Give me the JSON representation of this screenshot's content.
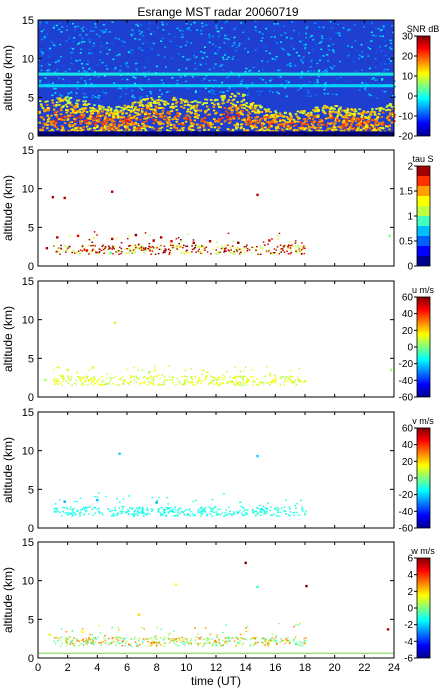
{
  "chart_data": [
    {
      "type": "heatmap",
      "title": "Esrange MST radar 20060719",
      "ylabel": "altitude (km)",
      "ylim": [
        0,
        15
      ],
      "xlim": [
        0,
        24
      ],
      "yticks": [
        0,
        5,
        10,
        15
      ],
      "colorbar": {
        "label": "SNR dB",
        "range": [
          -20,
          30
        ],
        "ticks": [
          -20,
          -10,
          0,
          10,
          20,
          30
        ]
      },
      "background": "#1f3fd0",
      "features": [
        {
          "desc": "strong echo layer",
          "x": [
            0,
            24
          ],
          "y": [
            1,
            4.5
          ],
          "value": 12
        },
        {
          "desc": "weak layer",
          "x": [
            0,
            24
          ],
          "y": [
            7.8,
            8.2
          ],
          "value": 0
        },
        {
          "desc": "weak layer",
          "x": [
            0,
            24
          ],
          "y": [
            6.3,
            6.7
          ],
          "value": -2
        }
      ]
    },
    {
      "type": "scatter",
      "ylabel": "altitude (km)",
      "ylim": [
        0,
        15
      ],
      "xlim": [
        0,
        24
      ],
      "yticks": [
        0,
        5,
        10,
        15
      ],
      "colorbar": {
        "label": "tau S",
        "range": [
          0,
          2
        ],
        "ticks": [
          0,
          0.5,
          1,
          1.5,
          2
        ]
      },
      "points": [
        {
          "x": 1.3,
          "y": 3.7,
          "v": 1.9
        },
        {
          "x": 2.7,
          "y": 3.9,
          "v": 1.8
        },
        {
          "x": 5.0,
          "y": 3.5,
          "v": 1.9
        },
        {
          "x": 6.6,
          "y": 4.0,
          "v": 2.0
        },
        {
          "x": 7.8,
          "y": 3.3,
          "v": 1.9
        },
        {
          "x": 8.3,
          "y": 3.7,
          "v": 1.9
        },
        {
          "x": 9.0,
          "y": 3.2,
          "v": 1.8
        },
        {
          "x": 10.5,
          "y": 3.0,
          "v": 1.9
        },
        {
          "x": 11.6,
          "y": 3.2,
          "v": 1.9
        },
        {
          "x": 13.5,
          "y": 3.0,
          "v": 2.0
        },
        {
          "x": 15.6,
          "y": 3.3,
          "v": 1.8
        },
        {
          "x": 23.7,
          "y": 3.9,
          "v": 1.0
        },
        {
          "x": 1.0,
          "y": 8.9,
          "v": 1.9
        },
        {
          "x": 1.8,
          "y": 8.8,
          "v": 1.9
        },
        {
          "x": 5.0,
          "y": 9.6,
          "v": 1.9
        },
        {
          "x": 14.8,
          "y": 9.2,
          "v": 1.9
        },
        {
          "x": 0.6,
          "y": 2.3,
          "v": 1.9
        },
        {
          "x": 9.6,
          "y": 2.5,
          "v": 1.4
        },
        {
          "x": 3.3,
          "y": 2.0,
          "v": 1.8
        },
        {
          "x": 4.9,
          "y": 1.7,
          "v": 0.9
        }
      ]
    },
    {
      "type": "scatter",
      "ylabel": "altitude (km)",
      "ylim": [
        0,
        15
      ],
      "xlim": [
        0,
        24
      ],
      "yticks": [
        0,
        5,
        10,
        15
      ],
      "colorbar": {
        "label": "u m/s",
        "range": [
          -60,
          60
        ],
        "ticks": [
          -60,
          -40,
          -20,
          0,
          20,
          40,
          60
        ]
      },
      "points": [
        {
          "x": 0.5,
          "y": 2.2,
          "v": 5
        },
        {
          "x": 2.0,
          "y": 3.5,
          "v": 10
        },
        {
          "x": 3.7,
          "y": 3.8,
          "v": 12
        },
        {
          "x": 5.2,
          "y": 9.6,
          "v": 8
        },
        {
          "x": 7.5,
          "y": 3.2,
          "v": 6
        },
        {
          "x": 23.8,
          "y": 3.5,
          "v": 5
        }
      ]
    },
    {
      "type": "scatter",
      "ylabel": "altitude (km)",
      "ylim": [
        0,
        15
      ],
      "xlim": [
        0,
        24
      ],
      "yticks": [
        0,
        5,
        10,
        15
      ],
      "colorbar": {
        "label": "v m/s",
        "range": [
          -60,
          60
        ],
        "ticks": [
          -60,
          -40,
          -20,
          0,
          20,
          40,
          60
        ]
      },
      "points": [
        {
          "x": 1.8,
          "y": 3.4,
          "v": -25
        },
        {
          "x": 4.0,
          "y": 3.6,
          "v": -22
        },
        {
          "x": 5.5,
          "y": 9.6,
          "v": -20
        },
        {
          "x": 8.0,
          "y": 3.3,
          "v": -25
        },
        {
          "x": 14.8,
          "y": 9.3,
          "v": -20
        }
      ]
    },
    {
      "type": "scatter",
      "xlabel": "time (UT)",
      "ylabel": "altitude (km)",
      "ylim": [
        0,
        15
      ],
      "xlim": [
        0,
        24
      ],
      "yticks": [
        0,
        5,
        10,
        15
      ],
      "xticks": [
        0,
        2,
        4,
        6,
        8,
        10,
        12,
        14,
        16,
        18,
        20,
        22,
        24
      ],
      "colorbar": {
        "label": "w m/s",
        "range": [
          -6,
          6
        ],
        "ticks": [
          -6,
          -4,
          -2,
          0,
          2,
          4,
          6
        ]
      },
      "points": [
        {
          "x": 14.0,
          "y": 12.3,
          "v": 6
        },
        {
          "x": 18.1,
          "y": 9.3,
          "v": 6
        },
        {
          "x": 23.6,
          "y": 3.7,
          "v": 5.5
        },
        {
          "x": 9.3,
          "y": 9.5,
          "v": 1.5
        },
        {
          "x": 14.8,
          "y": 9.2,
          "v": -1
        },
        {
          "x": 6.8,
          "y": 5.6,
          "v": 2
        },
        {
          "x": 0.8,
          "y": 3.0,
          "v": 1
        },
        {
          "x": 3.0,
          "y": 3.4,
          "v": 1.5
        }
      ]
    }
  ]
}
